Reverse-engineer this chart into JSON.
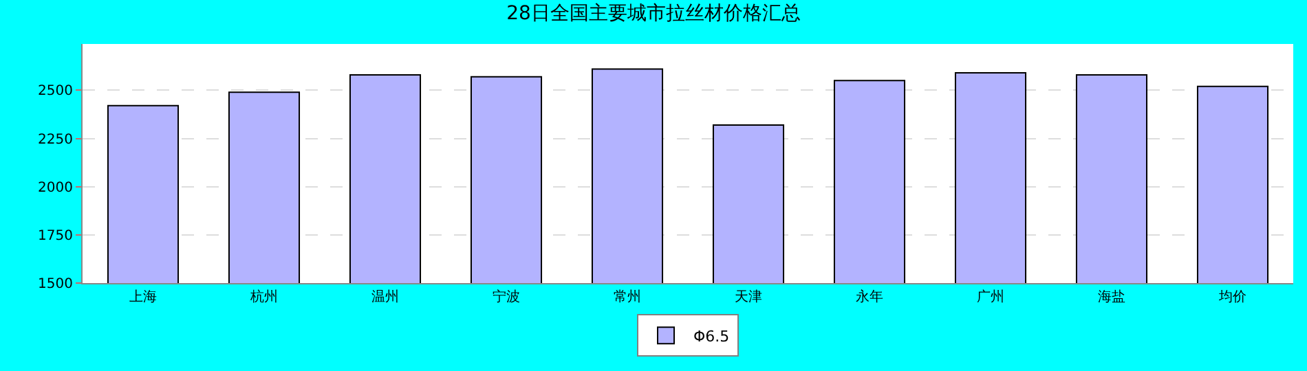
{
  "chart_data": {
    "type": "bar",
    "title": "28日全国主要城市拉丝材价格汇总",
    "categories": [
      "上海",
      "杭州",
      "温州",
      "宁波",
      "常州",
      "天津",
      "永年",
      "广州",
      "海盐",
      "均价"
    ],
    "series": [
      {
        "name": "Φ6.5",
        "color": "#b3b3ff",
        "values": [
          2420,
          2490,
          2580,
          2570,
          2610,
          2320,
          2550,
          2590,
          2580,
          2520
        ]
      }
    ],
    "ylim": [
      1500,
      2740
    ],
    "yticks": [
      1500,
      1750,
      2000,
      2250,
      2500
    ],
    "grid": "y",
    "legend": "bottom"
  }
}
